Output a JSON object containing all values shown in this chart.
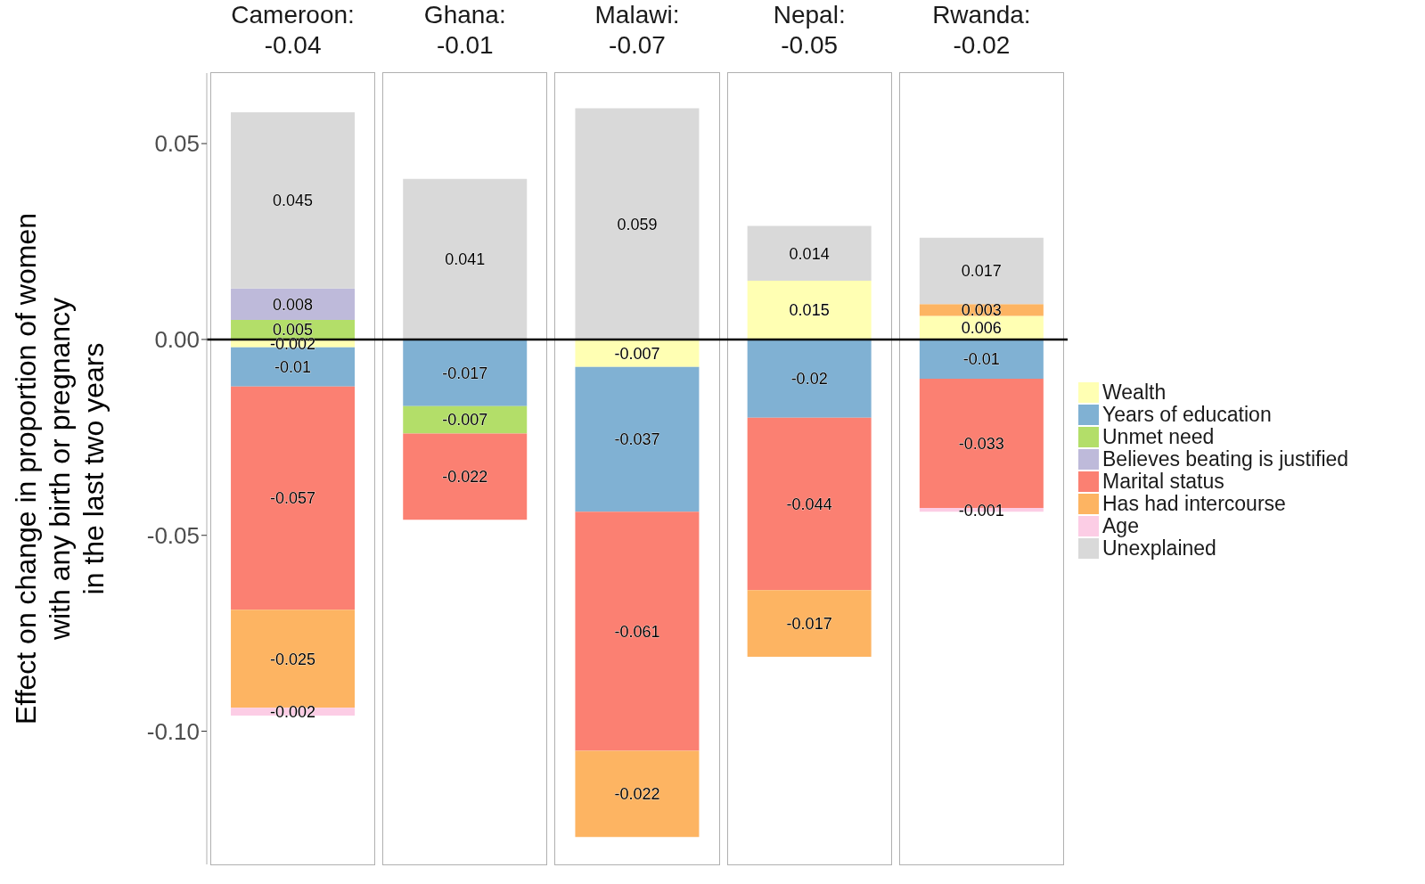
{
  "chart_data": {
    "type": "bar",
    "ylabel": "Effect on change in proportion of women\nwith any birth or pregnancy\nin the last two years",
    "categories": [
      "Cameroon:\n-0.04",
      "Ghana:\n-0.01",
      "Malawi:\n-0.07",
      "Nepal:\n-0.05",
      "Rwanda:\n-0.02"
    ],
    "stacked": true,
    "data_labels": true,
    "legend": "right",
    "ylim": [
      -0.134,
      0.068
    ],
    "yticks": [
      {
        "value": -0.1,
        "label": "-0.10"
      },
      {
        "value": -0.05,
        "label": "-0.05"
      },
      {
        "value": 0,
        "label": "0.00"
      },
      {
        "value": 0.05,
        "label": "0.05"
      }
    ],
    "ref_lines": [
      {
        "axis": "y",
        "value": 0,
        "color": "#000000"
      }
    ],
    "series": [
      {
        "name": "Wealth",
        "color": "#ffffb3",
        "values": [
          -0.002,
          null,
          -0.007,
          0.015,
          0.006
        ]
      },
      {
        "name": "Years of education",
        "color": "#80b1d3",
        "values": [
          -0.01,
          -0.017,
          -0.037,
          -0.02,
          -0.01
        ]
      },
      {
        "name": "Unmet need",
        "color": "#b3de69",
        "values": [
          0.005,
          -0.007,
          null,
          null,
          null
        ]
      },
      {
        "name": "Believes beating is justified",
        "color": "#bebada",
        "values": [
          0.008,
          null,
          null,
          null,
          null
        ]
      },
      {
        "name": "Marital status",
        "color": "#fb8072",
        "values": [
          -0.057,
          -0.022,
          -0.061,
          -0.044,
          -0.033
        ]
      },
      {
        "name": "Has had intercourse",
        "color": "#fdb462",
        "values": [
          -0.025,
          null,
          -0.022,
          -0.017,
          0.003
        ]
      },
      {
        "name": "Age",
        "color": "#fccde5",
        "values": [
          -0.002,
          null,
          null,
          null,
          -0.001
        ]
      },
      {
        "name": "Unexplained",
        "color": "#d9d9d9",
        "values": [
          0.045,
          0.041,
          0.059,
          0.014,
          0.017
        ]
      }
    ]
  }
}
